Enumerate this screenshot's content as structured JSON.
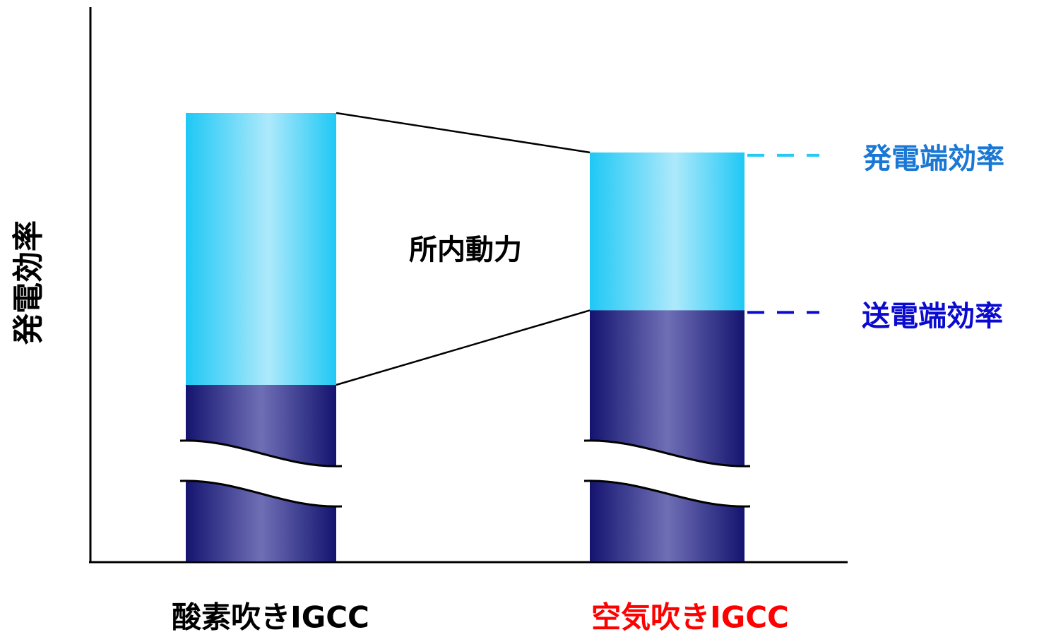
{
  "chart_data": {
    "type": "bar",
    "stacked": true,
    "axis_break": true,
    "ylabel": "発電効率",
    "xlabel": "",
    "categories": [
      "酸素吹きIGCC",
      "空気吹きIGCC"
    ],
    "category_colors": [
      "#000000",
      "#ff0000"
    ],
    "series": [
      {
        "name": "送電端効率",
        "values": [
          0.38,
          0.55
        ],
        "color": "#1a1a7a"
      },
      {
        "name": "所内動力",
        "values": [
          0.62,
          0.36
        ],
        "color": "#26c8f6"
      }
    ],
    "totals_note_label": "発電端効率",
    "totals": [
      1.0,
      0.91
    ],
    "ylim": [
      0,
      1.0
    ],
    "annotations": {
      "gap_label": "所内動力",
      "gross_label": "発電端効率",
      "net_label": "送電端効率",
      "gross_color": "#1a78d4",
      "net_color": "#0a0ad0"
    },
    "value_units": "relative (no numeric axis printed)"
  }
}
